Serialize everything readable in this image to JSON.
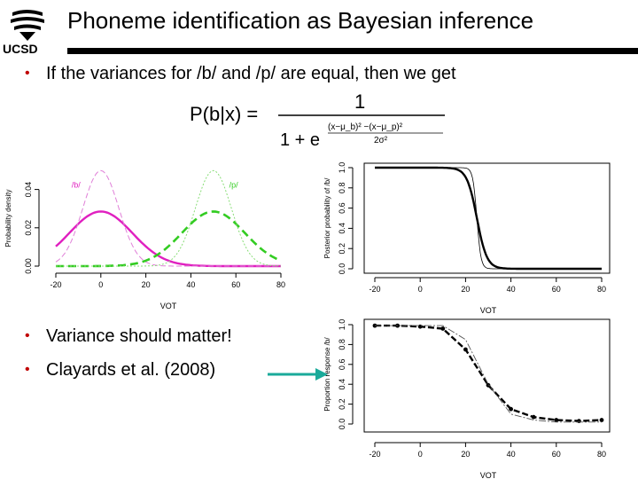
{
  "header": {
    "logo_text": "UCSD",
    "title": "Phoneme identification as Bayesian inference"
  },
  "bullets": {
    "b1": "If the variances for /b/ and /p/ are equal, then we get",
    "b2": "Variance should matter!",
    "b3": "Clayards et al. (2008)",
    "marker": "•"
  },
  "formula": {
    "lhs": "P(b|x) =",
    "numerator": "1",
    "den_prefix": "1 + e",
    "exp_num": "(x−μ_b)² −(x−μ_p)²",
    "exp_den": "2σ²"
  },
  "colors": {
    "magenta": "#e020c0",
    "green": "#33cc22",
    "pinkthin": "#e080d8",
    "greenthin": "#88dd77",
    "bullet": "#c00000",
    "arrow": "#1aaa9a"
  },
  "chart_data": [
    {
      "id": "density",
      "type": "line",
      "xlabel": "VOT",
      "ylabel": "Probability density",
      "xlim": [
        -20,
        80
      ],
      "ylim": [
        0,
        0.05
      ],
      "xticks": [
        -20,
        0,
        20,
        40,
        60,
        80
      ],
      "yticks": [
        "0.00",
        "0.02",
        "0.04"
      ],
      "annotations": [
        "/b/",
        "/p/"
      ],
      "series": [
        {
          "mean": 0,
          "sd": 14,
          "style": "magenta-thick"
        },
        {
          "mean": 0,
          "sd": 8,
          "style": "magenta-thin-dashed"
        },
        {
          "mean": 50,
          "sd": 14,
          "style": "green-thick-dashed"
        },
        {
          "mean": 50,
          "sd": 8,
          "style": "green-thin-dotted"
        }
      ]
    },
    {
      "id": "posterior",
      "type": "line",
      "xlabel": "VOT",
      "ylabel": "Posterior probability of /b/",
      "xlim": [
        -20,
        80
      ],
      "ylim": [
        0,
        1
      ],
      "xticks": [
        -20,
        0,
        20,
        40,
        60,
        80
      ],
      "yticks": [
        "0.0",
        "0.2",
        "0.4",
        "0.6",
        "0.8",
        "1.0"
      ],
      "series": [
        {
          "center": 25,
          "scale": 2.2,
          "style": "thick"
        },
        {
          "center": 25,
          "scale": 0.9,
          "style": "thin"
        }
      ]
    },
    {
      "id": "proportion",
      "type": "line",
      "xlabel": "VOT",
      "ylabel": "Proportion response /b/",
      "xlim": [
        -20,
        80
      ],
      "ylim": [
        0,
        1
      ],
      "xticks": [
        -20,
        0,
        20,
        40,
        60,
        80
      ],
      "yticks": [
        "0.0",
        "0.2",
        "0.4",
        "0.6",
        "0.8",
        "1.0"
      ],
      "series": [
        {
          "style": "dots-dashed",
          "x": [
            -20,
            -10,
            0,
            10,
            20,
            30,
            40,
            50,
            60,
            70,
            80
          ],
          "y": [
            0.99,
            0.99,
            0.98,
            0.96,
            0.75,
            0.39,
            0.15,
            0.07,
            0.04,
            0.03,
            0.04
          ]
        },
        {
          "style": "thin-dashdot",
          "x": [
            -20,
            -10,
            0,
            10,
            20,
            30,
            40,
            50,
            60,
            70,
            80
          ],
          "y": [
            0.99,
            0.99,
            0.99,
            0.99,
            0.85,
            0.4,
            0.1,
            0.04,
            0.02,
            0.02,
            0.02
          ]
        }
      ]
    }
  ]
}
